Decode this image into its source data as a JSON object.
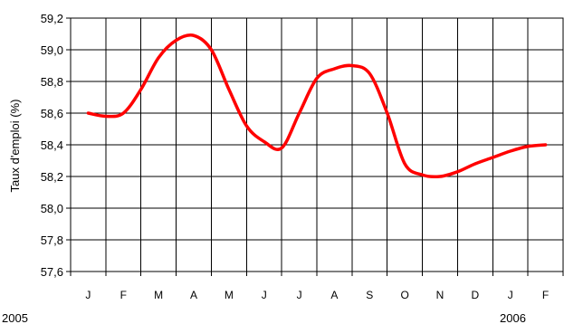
{
  "chart_data": {
    "type": "line",
    "categories": [
      "J",
      "F",
      "M",
      "A",
      "M",
      "J",
      "J",
      "A",
      "S",
      "O",
      "N",
      "D",
      "J",
      "F"
    ],
    "year_labels": [
      "2005",
      "2006"
    ],
    "ylabel": "Taux d'emploi (%)",
    "ylim": [
      57.6,
      59.2
    ],
    "yticks": [
      "57,6",
      "57,8",
      "58,0",
      "58,2",
      "58,4",
      "58,6",
      "58,8",
      "59,0",
      "59,2"
    ],
    "grid": true,
    "series": [
      {
        "color": "#ff0000",
        "x": [
          0,
          0.5,
          1,
          1.5,
          2,
          2.5,
          3,
          3.5,
          4,
          4.5,
          5,
          5.5,
          6,
          6.5,
          7,
          7.5,
          8,
          8.5,
          9,
          9.5,
          10,
          10.5,
          11,
          11.5,
          12,
          12.5,
          13
        ],
        "values": [
          58.6,
          58.58,
          58.6,
          58.75,
          58.95,
          59.06,
          59.09,
          59.0,
          58.75,
          58.52,
          58.42,
          58.38,
          58.6,
          58.82,
          58.88,
          58.9,
          58.85,
          58.6,
          58.28,
          58.21,
          58.2,
          58.23,
          58.28,
          58.32,
          58.36,
          58.39,
          58.4
        ]
      }
    ]
  }
}
